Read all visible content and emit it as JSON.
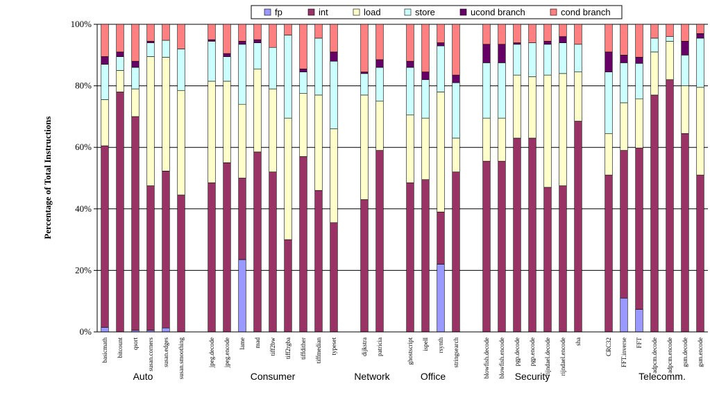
{
  "chart_data": {
    "type": "bar",
    "stacked": true,
    "title": "",
    "xlabel": "",
    "ylabel": "Percentage of Total Instructions",
    "ylim": [
      0,
      100
    ],
    "yticks": [
      "0%",
      "20%",
      "40%",
      "60%",
      "80%",
      "100%"
    ],
    "grid": true,
    "legend_position": "top",
    "series_names": [
      "fp",
      "int",
      "load",
      "store",
      "ucond branch",
      "cond branch"
    ],
    "series_colors": [
      "#9999FF",
      "#993366",
      "#FFFFCC",
      "#CCFFFF",
      "#660066",
      "#FF8080"
    ],
    "groups": [
      {
        "name": "Auto",
        "start": 0,
        "end": 5
      },
      {
        "name": "Consumer",
        "start": 7,
        "end": 15
      },
      {
        "name": "Network",
        "start": 17,
        "end": 18
      },
      {
        "name": "Office",
        "start": 20,
        "end": 23
      },
      {
        "name": "Security",
        "start": 25,
        "end": 31
      },
      {
        "name": "Telecomm.",
        "start": 33,
        "end": 40
      }
    ],
    "categories": [
      "basicmath",
      "bitcount",
      "qsort",
      "susan.corners",
      "susan.edges",
      "susan.smoothing",
      "",
      "jpeg.decode",
      "jpeg.encode",
      "lame",
      "mad",
      "tiff2bw",
      "tiff2rgba",
      "tiffdither",
      "tiffmedian",
      "typeset",
      "",
      "dijkstra",
      "patricia",
      "",
      "ghostscript",
      "ispell",
      "rsynth",
      "stringsearch",
      "",
      "blowfish.decode",
      "blowfish.encode",
      "pgp.decode",
      "pgp.encode",
      "rijndael.decode",
      "rijndael.encode",
      "sha",
      "",
      "CRC32",
      "FFT.inverse",
      "FFT",
      "adpcm.decode",
      "adpcm.encode",
      "gsm.decode",
      "gsm.encode"
    ],
    "series": [
      {
        "name": "fp",
        "values": [
          1.5,
          0,
          0.5,
          0.5,
          1.3,
          0,
          null,
          0,
          0,
          23.5,
          0,
          0,
          0,
          0,
          0,
          0,
          null,
          0,
          0,
          null,
          0,
          0,
          22,
          0,
          null,
          0,
          0,
          0,
          0,
          0,
          0,
          0,
          null,
          0,
          11,
          7.3,
          0,
          0,
          0,
          0
        ]
      },
      {
        "name": "int",
        "values": [
          59,
          78,
          69.5,
          47,
          51,
          44.5,
          null,
          48.5,
          55,
          26.5,
          58.5,
          52,
          30,
          57,
          46,
          35.5,
          null,
          43,
          59,
          null,
          48.5,
          49.5,
          17,
          52,
          null,
          55.5,
          55.5,
          63,
          63,
          47,
          47.5,
          68.5,
          null,
          51,
          48,
          52.5,
          77,
          82,
          64.5,
          51
        ]
      },
      {
        "name": "load",
        "values": [
          15,
          7,
          9,
          42,
          37,
          34,
          null,
          33,
          26.5,
          24,
          27,
          27,
          39.5,
          20.5,
          31,
          30.5,
          null,
          34,
          16,
          null,
          22,
          20,
          39,
          11,
          null,
          14,
          14,
          20.5,
          20,
          36.5,
          36.5,
          16,
          null,
          13.5,
          15.5,
          16,
          14,
          12.5,
          15.5,
          28.5
        ]
      },
      {
        "name": "store",
        "values": [
          11.5,
          4.5,
          7,
          4.5,
          5.5,
          13.5,
          null,
          13,
          8,
          19.5,
          8.5,
          13.5,
          27,
          7,
          18.5,
          22,
          null,
          7,
          11,
          null,
          15.5,
          12.5,
          15,
          18,
          null,
          18,
          18,
          10,
          11,
          10,
          10,
          9,
          null,
          20,
          13,
          11.5,
          4.5,
          1.5,
          10,
          16
        ]
      },
      {
        "name": "ucond branch",
        "values": [
          2.5,
          1.5,
          2,
          0.5,
          0,
          0,
          null,
          0.5,
          1,
          1,
          1,
          0,
          0,
          1,
          0,
          3,
          null,
          0.5,
          2.5,
          null,
          2,
          2.5,
          1,
          2.5,
          null,
          6,
          6,
          0.5,
          0,
          1,
          2,
          0,
          null,
          6.5,
          2.5,
          2,
          0,
          0,
          4.5,
          1.5
        ]
      },
      {
        "name": "cond branch",
        "values": [
          10.5,
          9,
          12,
          5.5,
          5.2,
          8,
          null,
          5,
          9.5,
          5.5,
          5,
          7.5,
          3.5,
          14.5,
          4.5,
          9,
          null,
          15.5,
          11.5,
          null,
          12,
          15.5,
          6,
          16.5,
          null,
          6.5,
          6.5,
          6,
          6,
          5.5,
          4,
          6.5,
          null,
          9,
          10,
          10.7,
          4.5,
          4,
          5.5,
          3
        ]
      }
    ]
  }
}
